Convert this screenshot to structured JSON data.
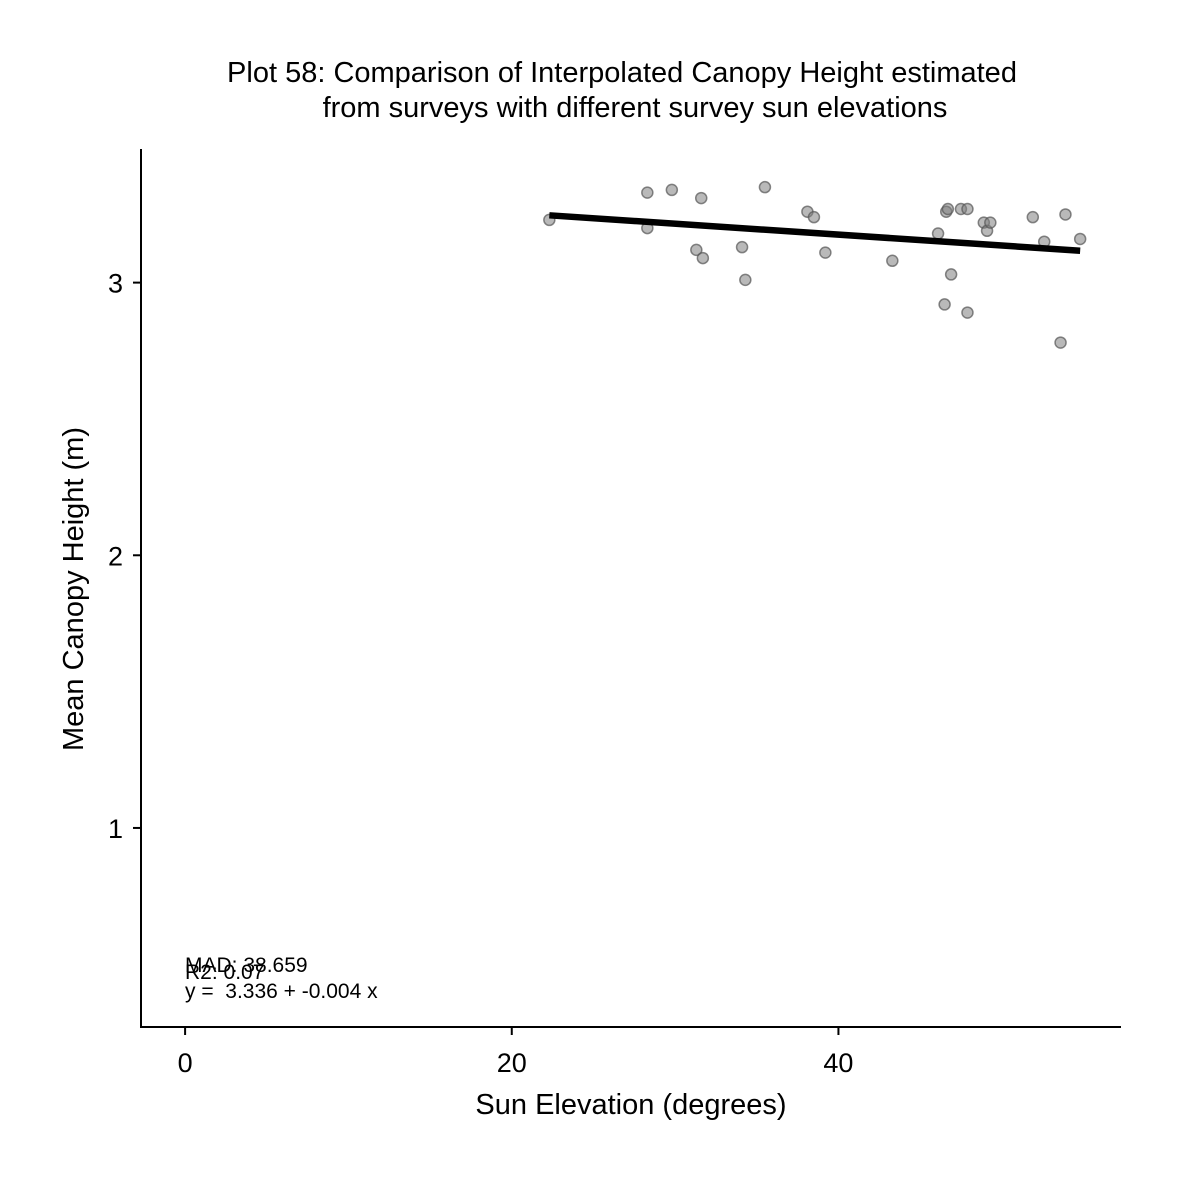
{
  "chart_data": {
    "type": "scatter",
    "title": "Plot 58: Comparison of Interpolated Canopy Height estimated",
    "subtitle": "from surveys with different survey sun elevations",
    "xlabel": "Sun Elevation (degrees)",
    "ylabel": "Mean Canopy Height (m)",
    "xlim": [
      -2.7,
      57.3
    ],
    "ylim": [
      0.27,
      3.49
    ],
    "xticks": [
      0,
      20,
      40
    ],
    "yticks": [
      1,
      2,
      3
    ],
    "grid": false,
    "legend": "none",
    "point_color": "#7f7f7f",
    "point_opacity": 0.55,
    "line_color": "#000000",
    "points": [
      {
        "x": 22.3,
        "y": 3.23
      },
      {
        "x": 28.3,
        "y": 3.33
      },
      {
        "x": 28.3,
        "y": 3.2
      },
      {
        "x": 29.8,
        "y": 3.34
      },
      {
        "x": 31.3,
        "y": 3.12
      },
      {
        "x": 31.6,
        "y": 3.31
      },
      {
        "x": 31.7,
        "y": 3.09
      },
      {
        "x": 34.1,
        "y": 3.13
      },
      {
        "x": 34.3,
        "y": 3.01
      },
      {
        "x": 35.5,
        "y": 3.35
      },
      {
        "x": 38.1,
        "y": 3.26
      },
      {
        "x": 38.5,
        "y": 3.24
      },
      {
        "x": 39.2,
        "y": 3.11
      },
      {
        "x": 43.3,
        "y": 3.08
      },
      {
        "x": 46.1,
        "y": 3.18
      },
      {
        "x": 46.5,
        "y": 2.92
      },
      {
        "x": 46.6,
        "y": 3.26
      },
      {
        "x": 46.7,
        "y": 3.27
      },
      {
        "x": 46.9,
        "y": 3.03
      },
      {
        "x": 47.5,
        "y": 3.27
      },
      {
        "x": 47.9,
        "y": 3.27
      },
      {
        "x": 47.9,
        "y": 2.89
      },
      {
        "x": 48.9,
        "y": 3.22
      },
      {
        "x": 49.1,
        "y": 3.19
      },
      {
        "x": 49.3,
        "y": 3.22
      },
      {
        "x": 51.9,
        "y": 3.24
      },
      {
        "x": 52.6,
        "y": 3.15
      },
      {
        "x": 53.6,
        "y": 2.78
      },
      {
        "x": 53.9,
        "y": 3.25
      },
      {
        "x": 54.8,
        "y": 3.16
      }
    ],
    "fit_line": {
      "x_start": 22.3,
      "x_end": 54.8,
      "intercept": 3.336,
      "slope": -0.004
    },
    "annotations": [
      "MAD: 38.659",
      "R2: 0.07",
      "y =  3.336 + -0.004 x"
    ]
  }
}
